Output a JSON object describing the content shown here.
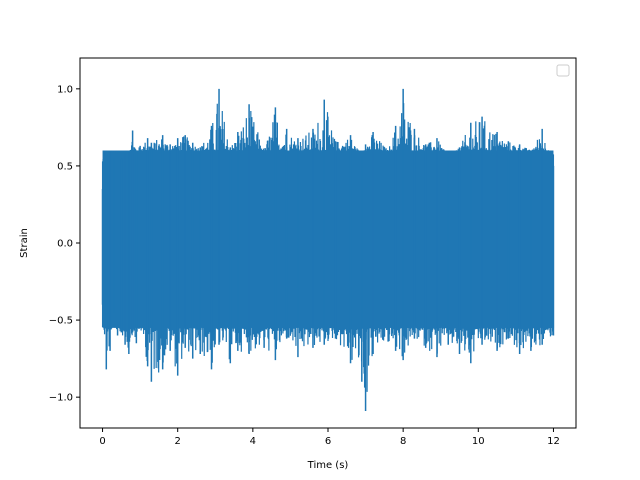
{
  "chart_data": {
    "type": "line",
    "title": "",
    "xlabel": "Time (s)",
    "ylabel": "Strain",
    "xlim": [
      -0.6,
      12.6
    ],
    "ylim": [
      -1.2,
      1.2
    ],
    "x_ticks": [
      0,
      2,
      4,
      6,
      8,
      10,
      12
    ],
    "x_tick_labels": [
      "0",
      "2",
      "4",
      "6",
      "8",
      "10",
      "12"
    ],
    "y_ticks": [
      -1.0,
      -0.5,
      0.0,
      0.5,
      1.0
    ],
    "y_tick_labels": [
      "−1.0",
      "−0.5",
      "0.0",
      "0.5",
      "1.0"
    ],
    "grid": false,
    "legend": {
      "placement": "upper right",
      "entries": []
    },
    "series": [
      {
        "color": "#1f77b4",
        "x_range": [
          0,
          12
        ],
        "dense_band": [
          -0.3,
          0.4
        ],
        "typical_range": [
          -0.55,
          0.6
        ],
        "x": [
          0,
          0.1,
          0.2,
          0.3,
          0.4,
          0.5,
          0.6,
          0.7,
          0.8,
          0.9,
          1.0,
          1.2,
          1.3,
          1.6,
          1.8,
          2.0,
          2.2,
          2.4,
          2.6,
          2.9,
          3.1,
          3.4,
          3.6,
          3.9,
          4.3,
          4.6,
          4.9,
          5.2,
          5.6,
          5.9,
          6.2,
          6.6,
          6.9,
          7.0,
          7.2,
          7.6,
          7.8,
          8.0,
          8.3,
          8.6,
          8.9,
          9.2,
          9.5,
          9.8,
          10.1,
          10.5,
          10.8,
          11.1,
          11.4,
          11.7,
          12.0
        ],
        "y_max": [
          0.35,
          0.58,
          0.6,
          0.55,
          0.58,
          0.55,
          0.58,
          0.59,
          0.73,
          0.6,
          0.63,
          0.68,
          0.65,
          0.7,
          0.64,
          0.68,
          0.7,
          0.65,
          0.62,
          0.76,
          1.0,
          0.62,
          0.72,
          0.9,
          0.6,
          0.88,
          0.74,
          0.68,
          0.74,
          0.93,
          0.66,
          0.7,
          0.56,
          0.64,
          0.72,
          0.6,
          0.76,
          1.0,
          0.74,
          0.64,
          0.68,
          0.56,
          0.62,
          0.78,
          0.82,
          0.72,
          0.66,
          0.64,
          0.6,
          0.74,
          0.5
        ],
        "y_min": [
          -0.4,
          -0.82,
          -0.7,
          -0.45,
          -0.6,
          -0.58,
          -0.66,
          -0.72,
          -0.58,
          -0.65,
          -0.54,
          -0.8,
          -0.9,
          -0.82,
          -0.7,
          -0.86,
          -0.68,
          -0.75,
          -0.72,
          -0.82,
          -0.66,
          -0.78,
          -0.7,
          -0.72,
          -0.68,
          -0.76,
          -0.62,
          -0.74,
          -0.68,
          -0.66,
          -0.62,
          -0.78,
          -0.9,
          -1.09,
          -0.72,
          -0.64,
          -0.7,
          -0.76,
          -0.62,
          -0.68,
          -0.74,
          -0.66,
          -0.72,
          -0.78,
          -0.66,
          -0.7,
          -0.62,
          -0.72,
          -0.7,
          -0.66,
          -0.6
        ]
      }
    ]
  }
}
